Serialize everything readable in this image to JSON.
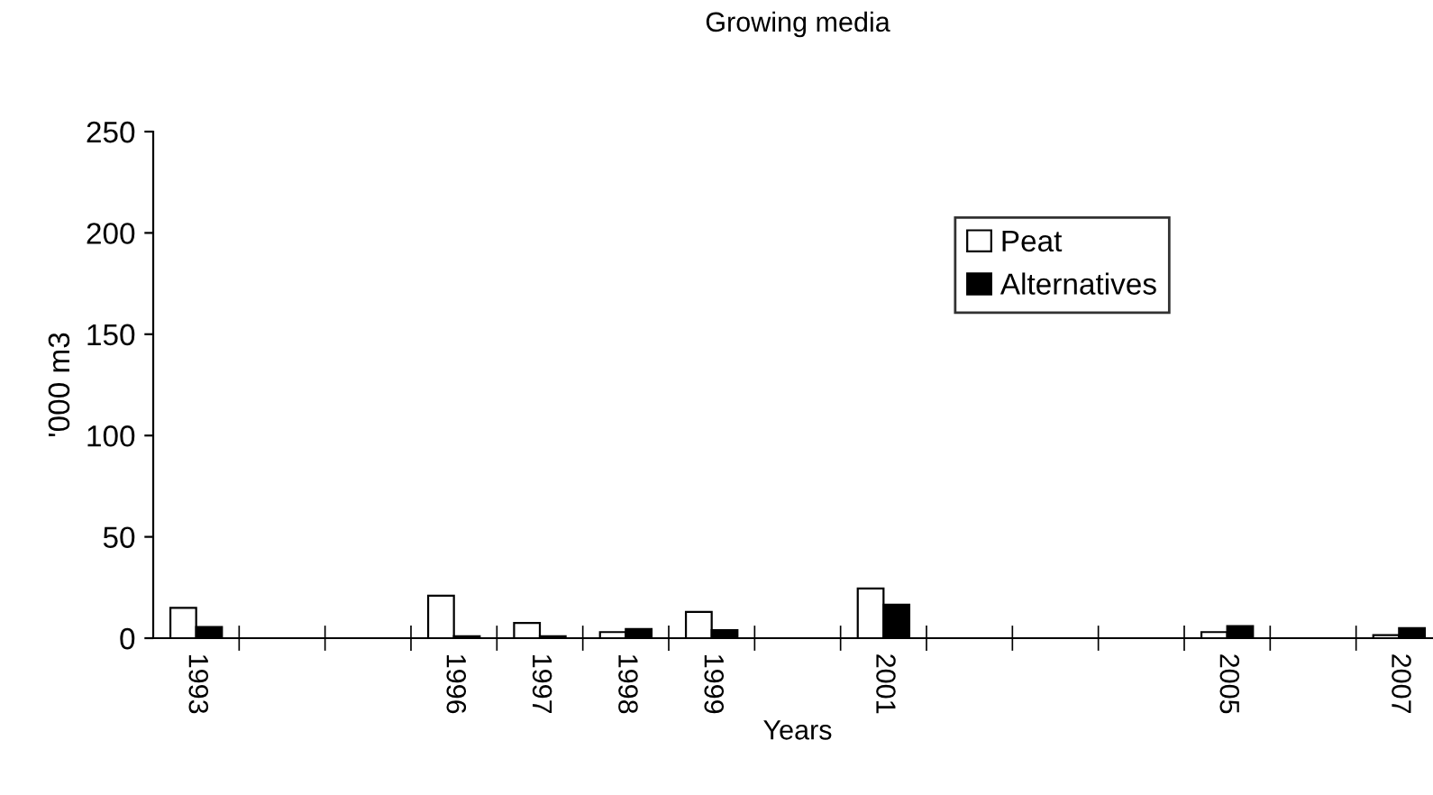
{
  "chart_data": {
    "type": "bar",
    "title": "Growing media",
    "xlabel": "Years",
    "ylabel": "'000 m3",
    "categories": [
      "1993",
      null,
      null,
      "1996",
      "1997",
      "1998",
      "1999",
      null,
      "2001",
      null,
      null,
      null,
      "2005",
      null,
      "2007"
    ],
    "series": [
      {
        "name": "Peat",
        "color": "#ffffff",
        "values": [
          15,
          null,
          null,
          21,
          7.5,
          3,
          13,
          null,
          24.5,
          null,
          null,
          null,
          3,
          null,
          1.5
        ]
      },
      {
        "name": "Alternatives",
        "color": "#000000",
        "values": [
          5.5,
          null,
          null,
          1,
          1,
          4.5,
          4,
          null,
          16.5,
          null,
          null,
          null,
          6,
          null,
          5
        ]
      }
    ],
    "ylim": [
      0,
      250
    ],
    "yticks": [
      0,
      50,
      100,
      150,
      200,
      250
    ],
    "grid": false,
    "legend": "top right"
  }
}
